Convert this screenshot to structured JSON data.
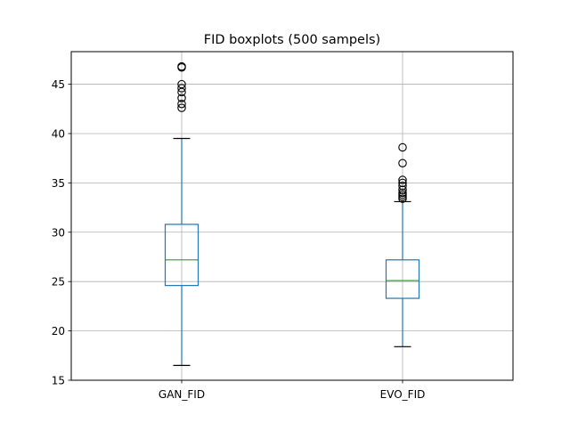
{
  "chart_data": {
    "type": "boxplot",
    "title": "FID boxplots (500 sampels)",
    "xlabel": "",
    "ylabel": "",
    "categories": [
      "GAN_FID",
      "EVO_FID"
    ],
    "ylim": [
      15,
      48.3
    ],
    "yticks": [
      15,
      20,
      25,
      30,
      35,
      40,
      45
    ],
    "grid": true,
    "boxes": [
      {
        "name": "GAN_FID",
        "whisker_low": 16.5,
        "q1": 24.6,
        "median": 27.2,
        "q3": 30.8,
        "whisker_high": 39.5,
        "outliers": [
          42.6,
          43.0,
          43.6,
          44.2,
          44.6,
          45.0,
          46.7,
          46.8
        ]
      },
      {
        "name": "EVO_FID",
        "whisker_low": 18.4,
        "q1": 23.3,
        "median": 25.1,
        "q3": 27.2,
        "whisker_high": 33.1,
        "outliers": [
          33.4,
          33.6,
          33.8,
          34.0,
          34.3,
          34.7,
          35.0,
          35.3,
          37.0,
          38.6
        ]
      }
    ],
    "colors": {
      "box": "#1f77b4",
      "median": "#2ca02c",
      "caps": "#000000",
      "grid": "#b0b0b0",
      "outlier": "#000000"
    }
  }
}
